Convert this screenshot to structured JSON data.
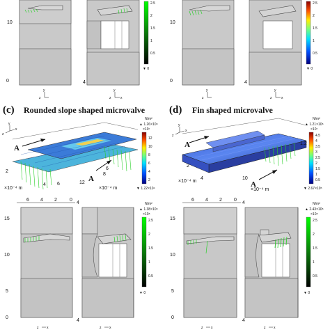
{
  "panels": {
    "c": {
      "letter": "(c)",
      "title": "Rounded slope shaped microvalve"
    },
    "d": {
      "letter": "(d)",
      "title": "Fin shaped microvalve"
    }
  },
  "units": {
    "stress": "N/m²",
    "length_c": "×10⁻⁴ m",
    "length_c_axis": "×10⁻⁴ m",
    "length_d": "×10⁻⁴ m",
    "length_d_axis": "×10⁻⁴ m"
  },
  "colorbars": {
    "top_left": {
      "max_label": "2.5",
      "ticks": [
        "2",
        "1.5",
        "1",
        "0.5"
      ],
      "min_label": "▼ 0"
    },
    "top_right": {
      "max_label": "2.5",
      "ticks": [
        "2",
        "1.5",
        "1",
        "0.5"
      ],
      "min_label": "▼ 0"
    },
    "c_3d": {
      "max_label": "▲ 1.26×10⁸",
      "exp": "×10⁷",
      "ticks": [
        "12",
        "10",
        "8",
        "6",
        "4",
        "2"
      ],
      "min_label": "▼ 1.22×10⁴"
    },
    "d_3d": {
      "max_label": "▲ 1.21×10⁸",
      "exp": "×10⁷",
      "ticks": [
        "4.5",
        "4",
        "3.5",
        "3",
        "2.5",
        "2",
        "1.5",
        "1",
        "0.5"
      ],
      "min_label": "▼ 2.67×10⁵"
    },
    "c_2d": {
      "max_label": "▲ 1.38×10⁸",
      "exp": "×10⁸",
      "ticks": [
        "2.5",
        "2",
        "1.5",
        "1",
        "0.5"
      ],
      "min_label": "▼ 0"
    },
    "d_2d": {
      "max_label": "▲ 2.43×10⁸",
      "exp": "×10⁸",
      "ticks": [
        "2.5",
        "2",
        "1.5",
        "1",
        "0.5"
      ],
      "min_label": "▼ 0"
    }
  },
  "axes": {
    "top_left_tick": "10",
    "top_right_tick": "10",
    "top_left_corner": "0",
    "top_right_corner": "0",
    "top_left_corner2": "4",
    "top_right_corner2": "4",
    "c_top_ticks": [
      "6",
      "4",
      "2",
      "0"
    ],
    "c_top_right_tick": "4",
    "c_left_ticks": [
      "15",
      "10",
      "5"
    ],
    "c_corner": "0",
    "c_corner2": "4",
    "d_top_ticks": [
      "6",
      "4",
      "2",
      "0"
    ],
    "d_top_right_tick": "4",
    "d_left_ticks": [
      "15",
      "10",
      "5"
    ],
    "d_corner": "0",
    "d_corner2": "4",
    "c3d_x_ticks": [
      "6",
      "8",
      "12"
    ],
    "c3d_y_ticks": [
      "2",
      "4"
    ],
    "c3d_misc": [
      "8",
      "6",
      "4"
    ],
    "d3d_ticks": [
      "2",
      "4",
      "6",
      "8",
      "10"
    ],
    "d3d_z": "1.2"
  },
  "triad": {
    "x": "x",
    "y": "y",
    "z": "z"
  },
  "markers": {
    "a": "A"
  }
}
